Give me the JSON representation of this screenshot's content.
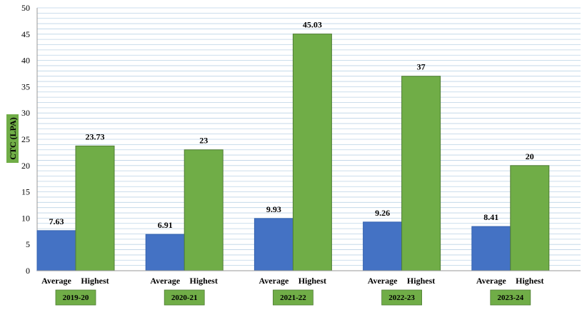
{
  "chart_data": {
    "type": "bar",
    "title": "",
    "xlabel": "",
    "ylabel": "CTC (LPA)",
    "ylim": [
      0,
      50
    ],
    "ytick_step": 5,
    "minor_grid_step": 1,
    "grid": true,
    "groups": [
      "2019-20",
      "2020-21",
      "2021-22",
      "2022-23",
      "2023-24"
    ],
    "subcategories": [
      "Average",
      "Highest"
    ],
    "series": [
      {
        "key": "Average",
        "color": "#4472C4",
        "values": [
          7.63,
          6.91,
          9.93,
          9.26,
          8.41
        ],
        "labels": [
          "7.63",
          "6.91",
          "9.93",
          "9.26",
          "8.41"
        ]
      },
      {
        "key": "Highest",
        "color": "#70AD47",
        "values": [
          23.73,
          23,
          45.03,
          37,
          20
        ],
        "labels": [
          "23.73",
          "23",
          "45.03",
          "37",
          "20"
        ]
      }
    ],
    "colors": {
      "label_box": "#70AD47",
      "grid": "#bcd3e6"
    }
  }
}
